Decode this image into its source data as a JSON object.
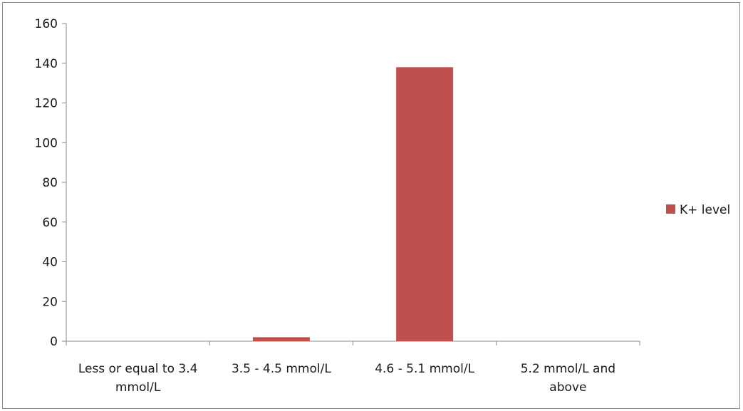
{
  "chart_data": {
    "type": "bar",
    "categories": [
      [
        "Less or equal to 3.4",
        "mmol/L"
      ],
      [
        "3.5 - 4.5 mmol/L"
      ],
      [
        "4.6 - 5.1 mmol/L"
      ],
      [
        "5.2 mmol/L and",
        "above"
      ]
    ],
    "series": [
      {
        "name": "K+ level",
        "values": [
          0,
          2,
          138,
          0
        ],
        "color": "#c0504d"
      }
    ],
    "ylim": [
      0,
      160
    ],
    "yticks": [
      "0",
      "20",
      "40",
      "60",
      "80",
      "100",
      "120",
      "140",
      "160"
    ],
    "grid": false,
    "legend_position": "right",
    "title": "",
    "xlabel": "",
    "ylabel": ""
  }
}
